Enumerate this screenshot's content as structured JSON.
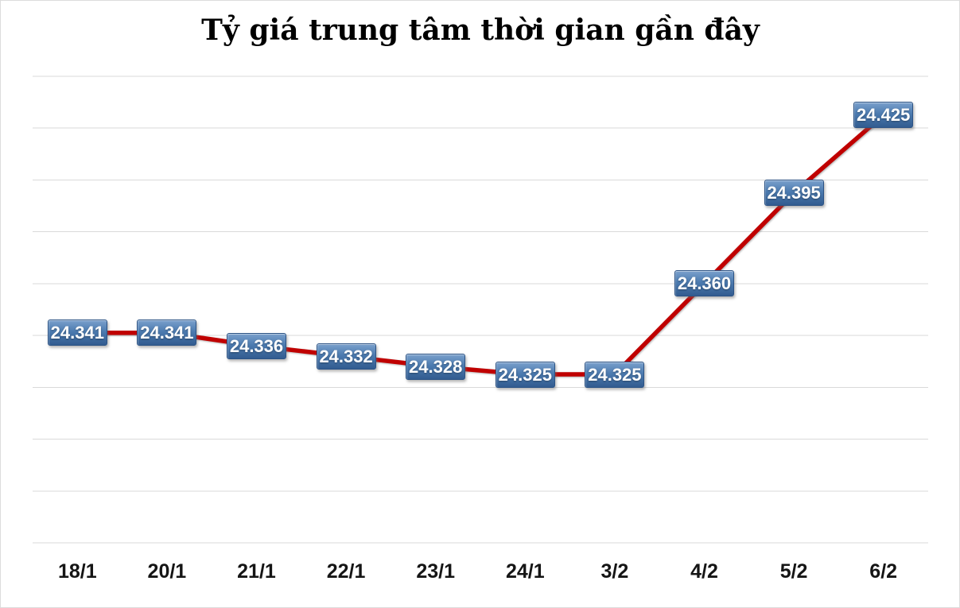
{
  "title": "Tỷ giá trung tâm thời gian gần đây",
  "colors": {
    "line": "#c00000",
    "gridline": "#d9d9d9",
    "label_box_top": "#7aa0cc",
    "label_box_bottom": "#325c90",
    "label_text": "#ffffff",
    "axis_text": "#151515",
    "title_text": "#000000",
    "background": "#ffffff"
  },
  "chart_data": {
    "type": "line",
    "title": "Tỷ giá trung tâm thời gian gần đây",
    "categories": [
      "18/1",
      "20/1",
      "21/1",
      "22/1",
      "23/1",
      "24/1",
      "3/2",
      "4/2",
      "5/2",
      "6/2"
    ],
    "values": [
      24341,
      24341,
      24336,
      24332,
      24328,
      24325,
      24325,
      24360,
      24395,
      24425
    ],
    "data_labels": [
      "24.341",
      "24.341",
      "24.336",
      "24.332",
      "24.328",
      "24.325",
      "24.325",
      "24.360",
      "24.395",
      "24.425"
    ],
    "series_name": "Tỷ giá trung tâm",
    "xlabel": "",
    "ylabel": "",
    "ylim": [
      24260,
      24440
    ],
    "gridline_step": 20,
    "grid": true,
    "legend_position": "none",
    "data_label_style": "blue-gradient-box"
  }
}
